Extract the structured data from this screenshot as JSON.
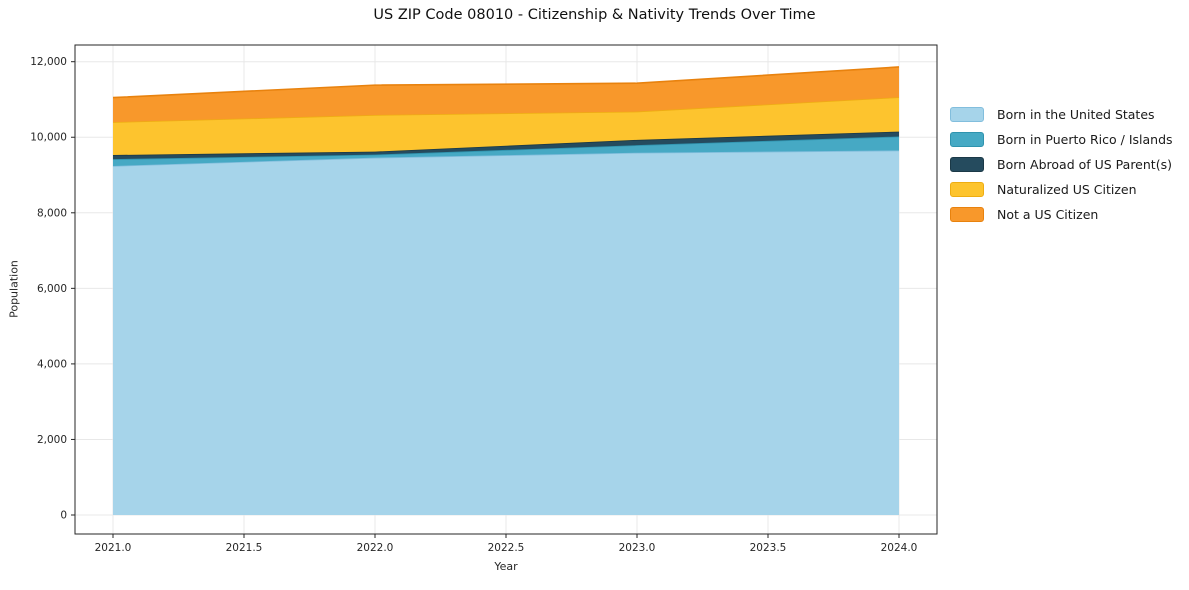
{
  "chart_data": {
    "type": "area",
    "stacked": true,
    "title": "US ZIP Code 08010 - Citizenship & Nativity Trends Over Time",
    "xlabel": "Year",
    "ylabel": "Population",
    "x": [
      2021,
      2022,
      2023,
      2024
    ],
    "series": [
      {
        "name": "Born in the United States",
        "values": [
          9240,
          9460,
          9590,
          9650
        ],
        "color": "#a6d4ea",
        "edge_color": "#82bedd"
      },
      {
        "name": "Born in Puerto Rico / Islands",
        "values": [
          180,
          80,
          200,
          370
        ],
        "color": "#46a9c4",
        "edge_color": "#2f93ae"
      },
      {
        "name": "Born Abroad of US Parent(s)",
        "values": [
          110,
          80,
          140,
          130
        ],
        "color": "#254b5e",
        "edge_color": "#1b3947"
      },
      {
        "name": "Naturalized US Citizen",
        "values": [
          870,
          970,
          750,
          910
        ],
        "color": "#fdc42e",
        "edge_color": "#eead12"
      },
      {
        "name": "Not a US Citizen",
        "values": [
          650,
          790,
          750,
          800
        ],
        "color": "#f8982b",
        "edge_color": "#e8820e"
      }
    ],
    "stacked_totals": [
      11050,
      11380,
      11430,
      11860
    ],
    "x_ticks": [
      {
        "value": 2021.0,
        "label": "2021.0"
      },
      {
        "value": 2021.5,
        "label": "2021.5"
      },
      {
        "value": 2022.0,
        "label": "2022.0"
      },
      {
        "value": 2022.5,
        "label": "2022.5"
      },
      {
        "value": 2023.0,
        "label": "2023.0"
      },
      {
        "value": 2023.5,
        "label": "2023.5"
      },
      {
        "value": 2024.0,
        "label": "2024.0"
      }
    ],
    "y_ticks": [
      {
        "value": 0,
        "label": "0"
      },
      {
        "value": 2000,
        "label": "2,000"
      },
      {
        "value": 4000,
        "label": "4,000"
      },
      {
        "value": 6000,
        "label": "6,000"
      },
      {
        "value": 8000,
        "label": "8,000"
      },
      {
        "value": 10000,
        "label": "10,000"
      },
      {
        "value": 12000,
        "label": "12,000"
      }
    ],
    "xlim": [
      2020.855,
      2024.145
    ],
    "ylim": [
      -503,
      12442
    ],
    "grid": true,
    "grid_color": "#e8e8e8",
    "axis_color": "#262626",
    "background_color": "#ffffff",
    "legend_position": "right"
  }
}
